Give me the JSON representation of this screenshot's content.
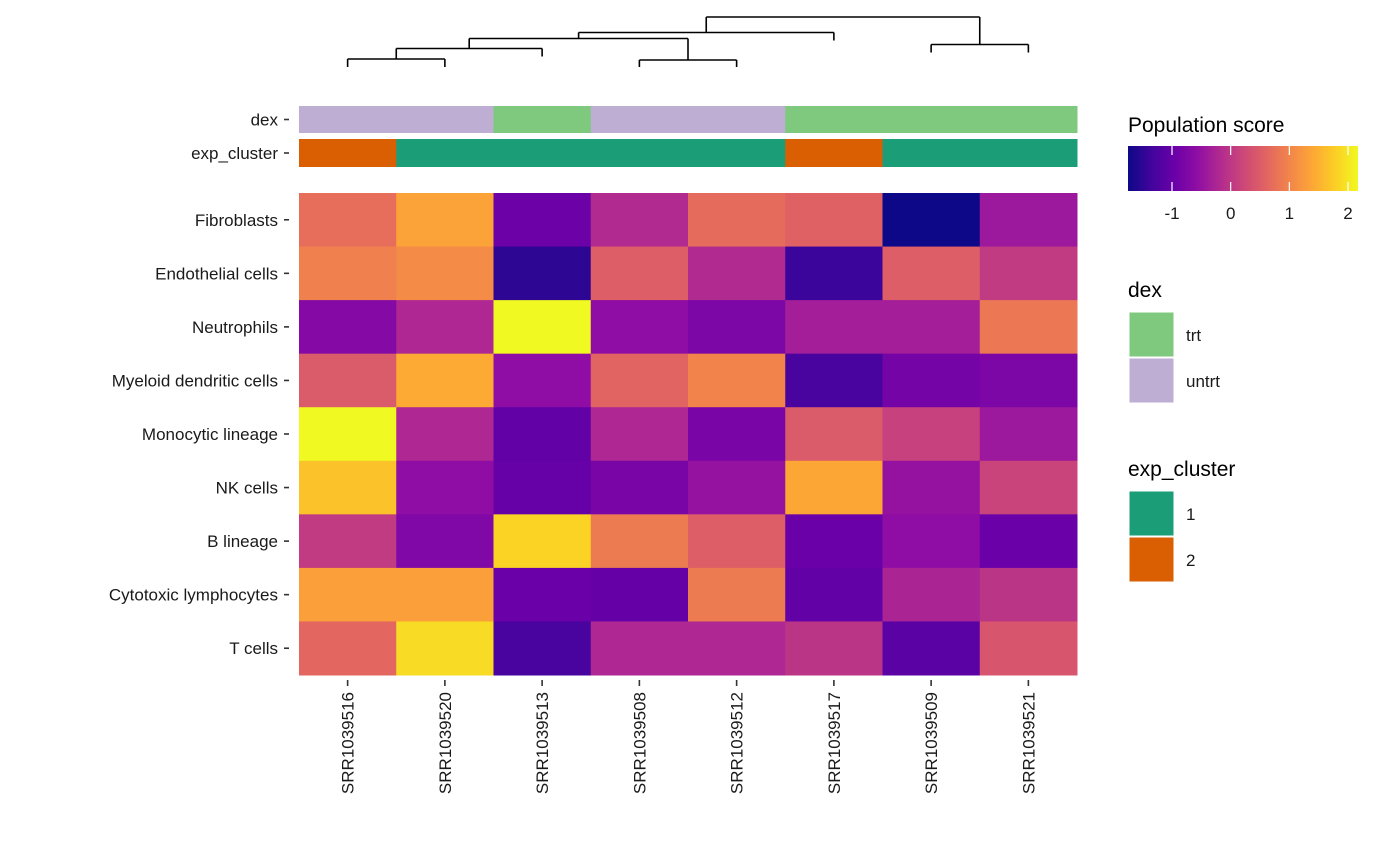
{
  "chart_data": {
    "type": "heatmap",
    "title": "",
    "xlabel": "",
    "ylabel": "",
    "columns": [
      "SRR1039516",
      "SRR1039520",
      "SRR1039513",
      "SRR1039508",
      "SRR1039512",
      "SRR1039517",
      "SRR1039509",
      "SRR1039521"
    ],
    "rows": [
      "Fibroblasts",
      "Endothelial cells",
      "Neutrophils",
      "Myeloid dendritic cells",
      "Monocytic lineage",
      "NK cells",
      "B lineage",
      "Cytotoxic lymphocytes",
      "T cells"
    ],
    "values": [
      [
        0.72,
        1.35,
        -0.93,
        -0.18,
        0.7,
        0.56,
        -1.75,
        -0.42
      ],
      [
        0.95,
        1.07,
        -1.51,
        0.52,
        -0.18,
        -1.4,
        0.52,
        0.05
      ],
      [
        -0.69,
        -0.22,
        2.17,
        -0.57,
        -0.77,
        -0.34,
        -0.34,
        0.84
      ],
      [
        0.48,
        1.43,
        -0.57,
        0.6,
        0.99,
        -1.28,
        -0.85,
        -0.77
      ],
      [
        2.17,
        -0.22,
        -1.04,
        -0.22,
        -0.81,
        0.48,
        0.13,
        -0.42
      ],
      [
        1.66,
        -0.57,
        -1.0,
        -0.81,
        -0.5,
        1.39,
        -0.5,
        0.17
      ],
      [
        0.05,
        -0.73,
        1.82,
        0.88,
        0.52,
        -0.97,
        -0.57,
        -0.97
      ],
      [
        1.31,
        1.31,
        -0.97,
        -1.01,
        0.88,
        -1.04,
        -0.26,
        -0.03
      ],
      [
        0.64,
        1.9,
        -1.28,
        -0.22,
        -0.22,
        -0.03,
        -1.12,
        0.41
      ]
    ],
    "annotations": [
      {
        "name": "dex",
        "values": [
          "untrt",
          "untrt",
          "trt",
          "untrt",
          "untrt",
          "trt",
          "trt",
          "trt"
        ]
      },
      {
        "name": "exp_cluster",
        "values": [
          "2",
          "1",
          "1",
          "1",
          "1",
          "2",
          "1",
          "1"
        ]
      }
    ],
    "dendrogram": {
      "order": [
        "SRR1039516",
        "SRR1039520",
        "SRR1039513",
        "SRR1039508",
        "SRR1039512",
        "SRR1039517",
        "SRR1039509",
        "SRR1039521"
      ],
      "merges": [
        {
          "left": "SRR1039516",
          "right": "SRR1039520",
          "height": 0.16
        },
        {
          "left": "SRR1039508",
          "right": "SRR1039512",
          "height": 0.14
        },
        {
          "left": "SRR1039509",
          "right": "SRR1039521",
          "height": 0.45
        },
        {
          "left": "m1",
          "right": "SRR1039513",
          "height": 0.37
        },
        {
          "left": "m4",
          "right": "m2",
          "height": 0.57
        },
        {
          "left": "m5",
          "right": "SRR1039517",
          "height": 0.69
        },
        {
          "left": "m6",
          "right": "m3",
          "height": 1.0
        }
      ]
    },
    "colorbar": {
      "title": "Population score",
      "palette": "plasma",
      "range": [
        -1.75,
        2.17
      ],
      "ticks": [
        -1,
        0,
        1,
        2
      ]
    },
    "legends": [
      {
        "title": "dex",
        "items": [
          {
            "label": "trt",
            "color": "#7fc97f"
          },
          {
            "label": "untrt",
            "color": "#beaed4"
          }
        ]
      },
      {
        "title": "exp_cluster",
        "items": [
          {
            "label": "1",
            "color": "#1b9e77"
          },
          {
            "label": "2",
            "color": "#d95f02"
          }
        ]
      }
    ],
    "grid": false
  },
  "colors": {
    "annotation": {
      "dex": {
        "trt": "#7fc97f",
        "untrt": "#beaed4"
      },
      "exp_cluster": {
        "1": "#1b9e77",
        "2": "#d95f02"
      }
    },
    "plasma_stops": [
      "#0d0887",
      "#41049d",
      "#6a00a8",
      "#8f0da4",
      "#b12a90",
      "#cc4778",
      "#e16462",
      "#f2844b",
      "#fca636",
      "#fcce25",
      "#f0f921"
    ]
  }
}
